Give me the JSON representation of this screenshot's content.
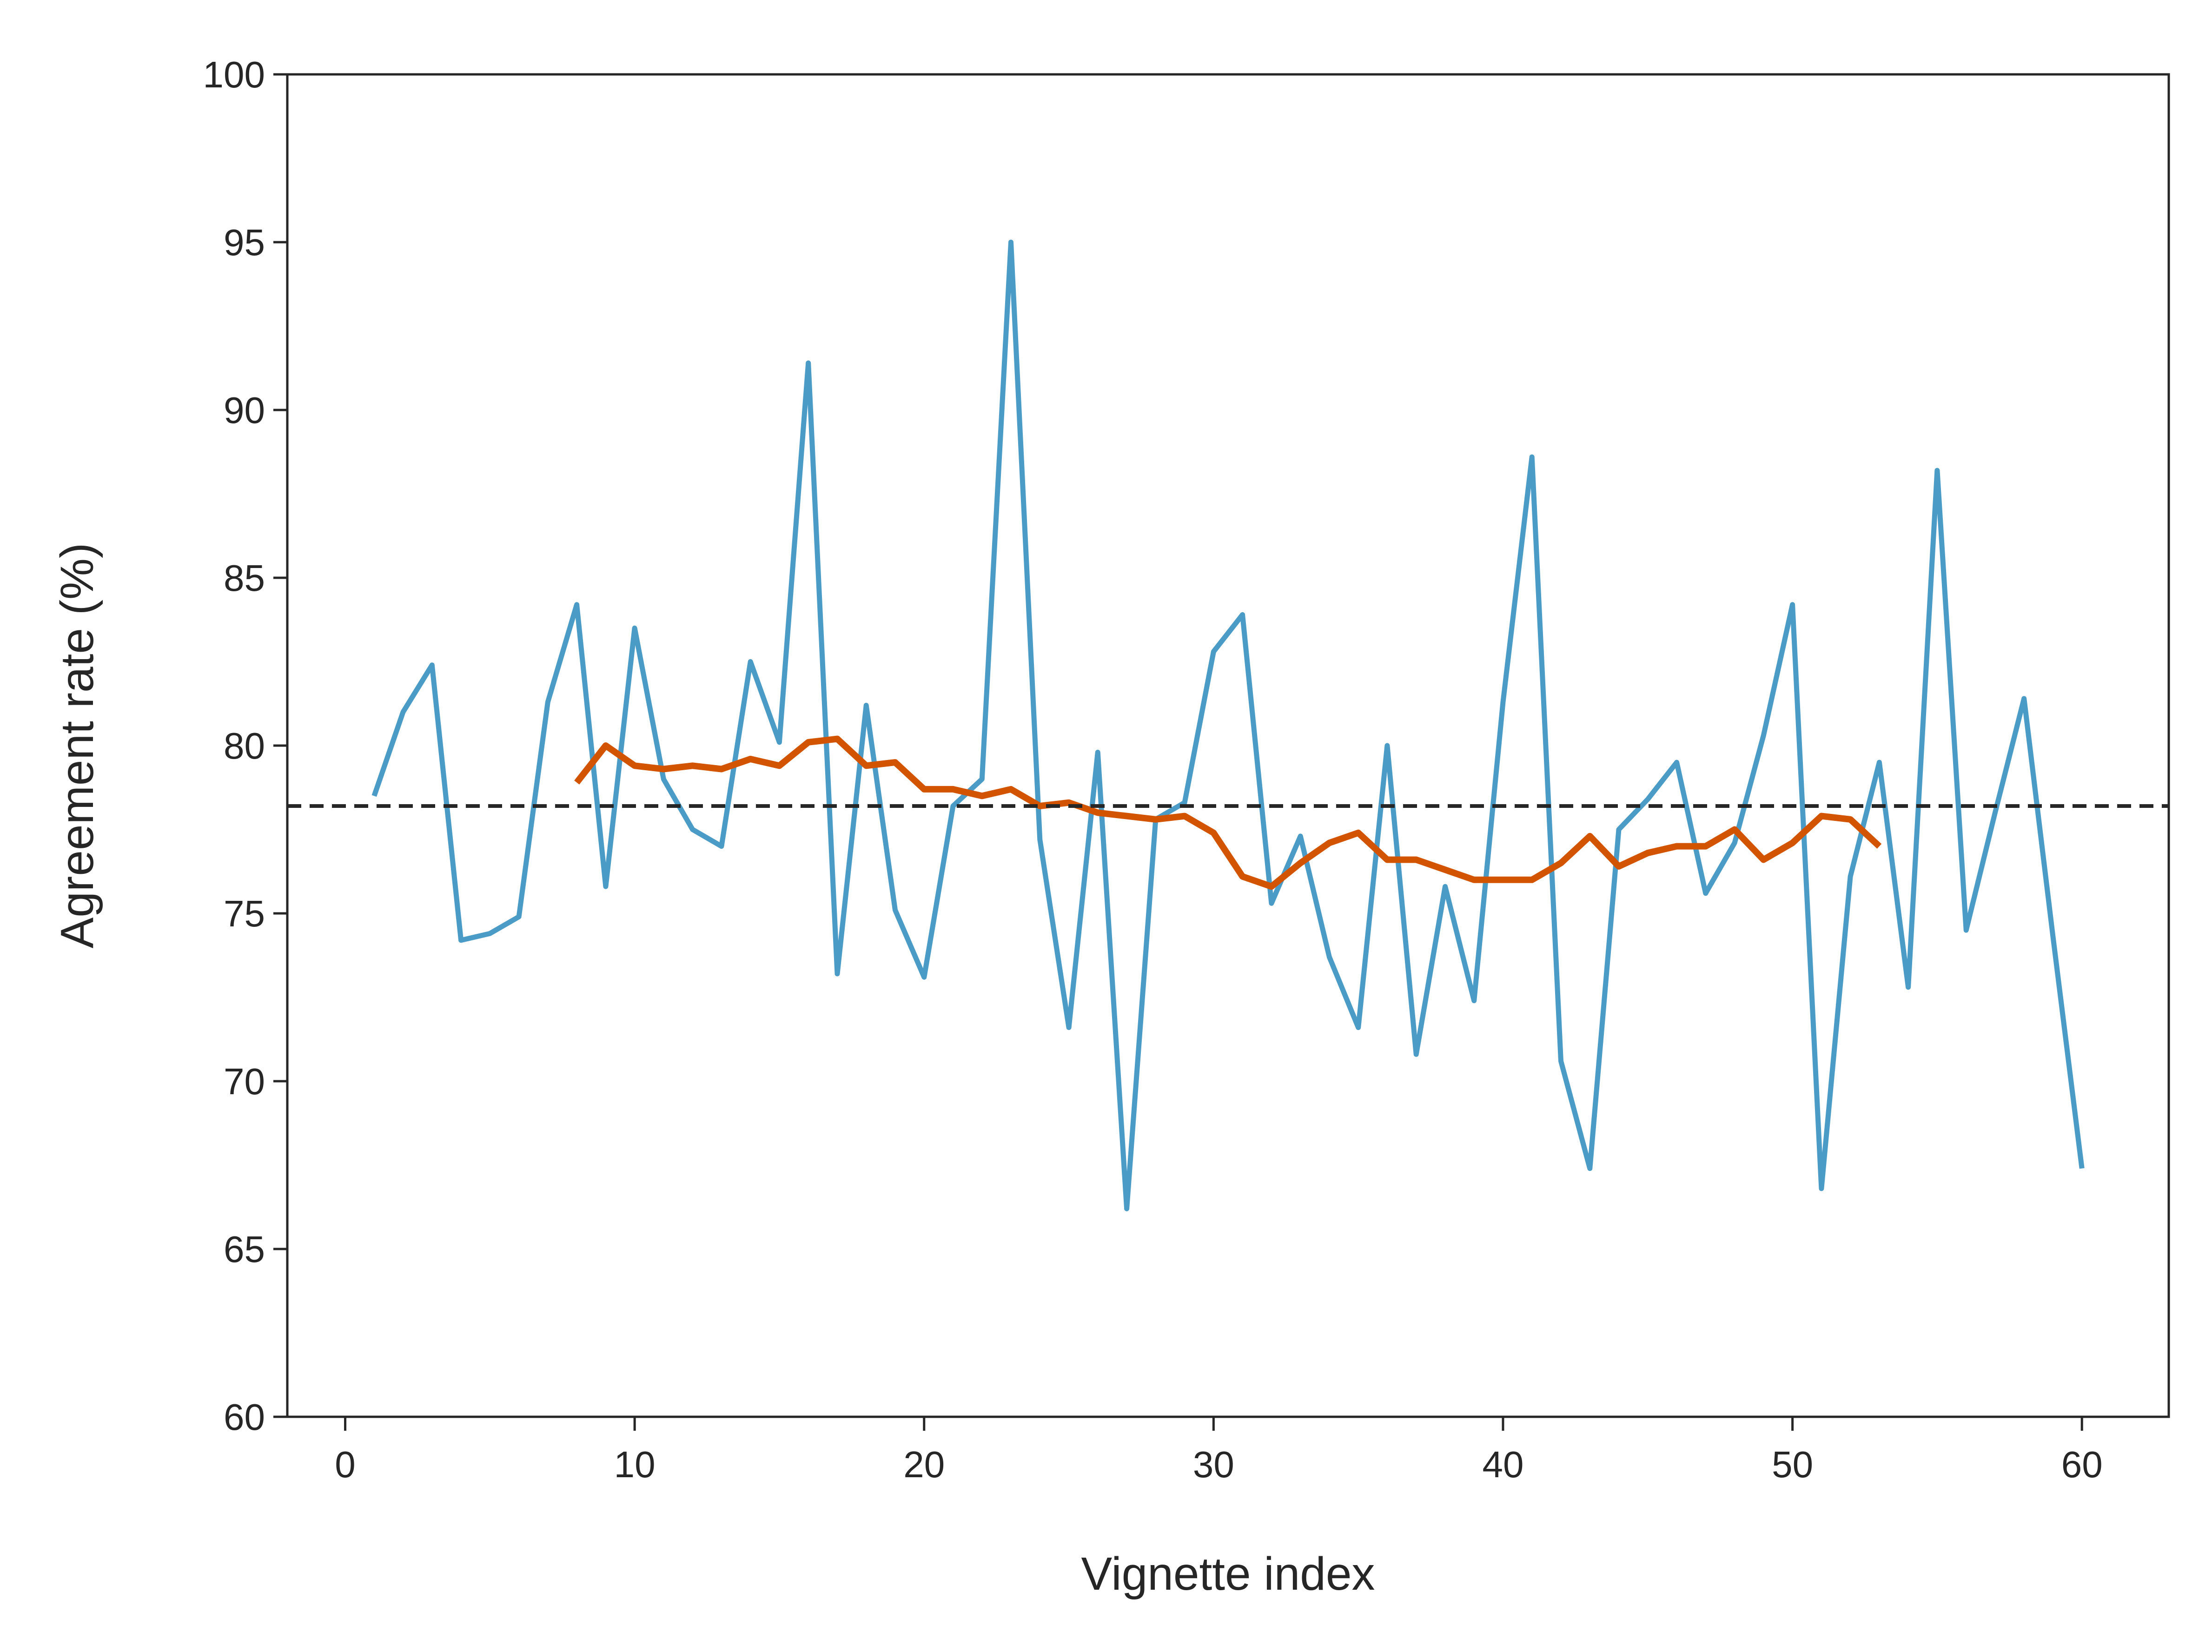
{
  "chart_data": {
    "type": "line",
    "title": "",
    "xlabel": "Vignette index",
    "ylabel": "Agreement rate (%)",
    "xlim": [
      -2,
      63
    ],
    "ylim": [
      60,
      100
    ],
    "xticks": [
      0,
      10,
      20,
      30,
      40,
      50,
      60
    ],
    "yticks": [
      60,
      65,
      70,
      75,
      80,
      85,
      90,
      95,
      100
    ],
    "grid": false,
    "legend": "none",
    "reference_line": {
      "y": 78.2,
      "style": "dashed",
      "color": "#262626"
    },
    "series": [
      {
        "color": "#4a9bc6",
        "x": [
          1,
          2,
          3,
          4,
          5,
          6,
          7,
          8,
          9,
          10,
          11,
          12,
          13,
          14,
          15,
          16,
          17,
          18,
          19,
          20,
          21,
          22,
          23,
          24,
          25,
          26,
          27,
          28,
          29,
          30,
          31,
          32,
          33,
          34,
          35,
          36,
          37,
          38,
          39,
          40,
          41,
          42,
          43,
          44,
          45,
          46,
          47,
          48,
          49,
          50,
          51,
          52,
          53,
          54,
          55,
          56,
          57,
          58,
          59,
          60
        ],
        "values": [
          78.5,
          81.0,
          82.4,
          74.2,
          74.4,
          74.9,
          81.3,
          84.2,
          75.8,
          83.5,
          79.0,
          77.5,
          77.0,
          82.5,
          80.1,
          91.4,
          73.2,
          81.2,
          75.1,
          73.1,
          78.2,
          79.0,
          95.0,
          77.2,
          71.6,
          79.8,
          66.2,
          77.8,
          78.3,
          82.8,
          83.9,
          75.3,
          77.3,
          73.7,
          71.6,
          80.0,
          70.8,
          75.8,
          72.4,
          81.3,
          88.6,
          70.6,
          67.4,
          77.5,
          78.4,
          79.5,
          75.6,
          77.1,
          80.3,
          84.2,
          66.8,
          76.1,
          79.5,
          72.8,
          88.2,
          74.5,
          78.0,
          81.4,
          74.3,
          67.4
        ]
      },
      {
        "color": "#d35400",
        "x": [
          8,
          9,
          10,
          11,
          12,
          13,
          14,
          15,
          16,
          17,
          18,
          19,
          20,
          21,
          22,
          23,
          24,
          25,
          26,
          27,
          28,
          29,
          30,
          31,
          32,
          33,
          34,
          35,
          36,
          37,
          38,
          39,
          40,
          41,
          42,
          43,
          44,
          45,
          46,
          47,
          48,
          49,
          50,
          51,
          52,
          53
        ],
        "values": [
          78.9,
          80.0,
          79.4,
          79.3,
          79.4,
          79.3,
          79.6,
          79.4,
          80.1,
          80.2,
          79.4,
          79.5,
          78.7,
          78.7,
          78.5,
          78.7,
          78.2,
          78.3,
          78.0,
          77.9,
          77.8,
          77.9,
          77.4,
          76.1,
          75.8,
          76.5,
          77.1,
          77.4,
          76.6,
          76.6,
          76.3,
          76.0,
          76.0,
          76.0,
          76.5,
          77.3,
          76.4,
          76.8,
          77.0,
          77.0,
          77.5,
          76.6,
          77.1,
          77.9,
          77.8,
          77.0
        ]
      }
    ]
  }
}
